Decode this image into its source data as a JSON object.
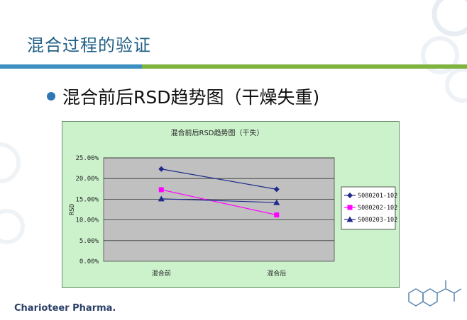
{
  "slide": {
    "title": "混合过程的验证",
    "bullet": "混合前后RSD趋势图（干燥失重)",
    "brand": "Charioteer Pharma.",
    "accent_blue": "#3c8fbf",
    "accent_green": "#7fb23e"
  },
  "chart_data": {
    "type": "line",
    "title": "混合前后RSD趋势图（干失）",
    "xlabel": "",
    "ylabel": "RSD",
    "categories": [
      "混合前",
      "混合后"
    ],
    "ylim": [
      0,
      25
    ],
    "yticks": [
      "0.00%",
      "5.00%",
      "10.00%",
      "15.00%",
      "20.00%",
      "25.00%"
    ],
    "grid": true,
    "legend_position": "right",
    "series": [
      {
        "name": "S080201-102",
        "values": [
          22.3,
          17.4
        ],
        "color": "#1f2a8c",
        "marker": "diamond"
      },
      {
        "name": "S080202-102",
        "values": [
          17.3,
          11.2
        ],
        "color": "#ff00ff",
        "marker": "square"
      },
      {
        "name": "S080203-102",
        "values": [
          15.1,
          14.2
        ],
        "color": "#1f2a8c",
        "marker": "triangle"
      }
    ]
  }
}
